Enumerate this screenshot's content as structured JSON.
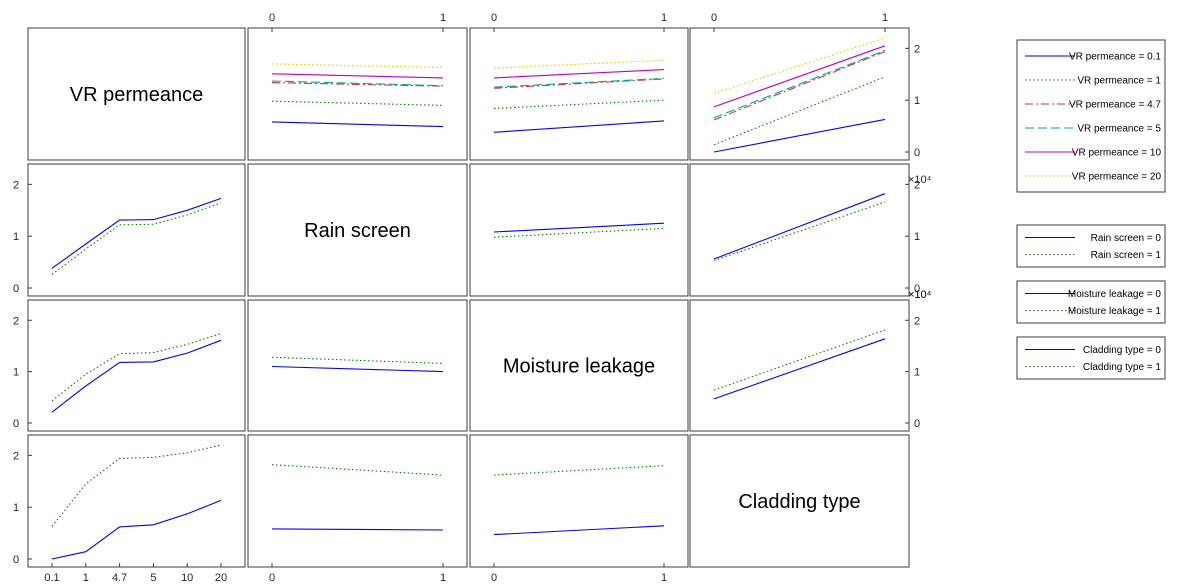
{
  "chart_data": {
    "type": "line",
    "variables": [
      "VR permeance",
      "Rain screen",
      "Moisture leakage",
      "Cladding type"
    ],
    "levels": [
      [
        "0.1",
        "1",
        "4.7",
        "5",
        "10",
        "20"
      ],
      [
        "0",
        "1"
      ],
      [
        "0",
        "1"
      ],
      [
        "0",
        "1"
      ]
    ],
    "series_styles": [
      {
        "color": "#0000ff",
        "dash": ""
      },
      {
        "color": "#008000",
        "dash": "1.5,2.5"
      },
      {
        "color": "#e03030",
        "dash": "8,3,2,3"
      },
      {
        "color": "#00a6a6",
        "dash": "9,4"
      },
      {
        "color": "#c000c0",
        "dash": ""
      },
      {
        "color": "#cccc00",
        "dash": "1.5,2.5"
      }
    ],
    "y_ticks": [
      "0",
      "1",
      "2"
    ],
    "exponent_label": "×10⁴",
    "ylim": [
      0,
      2.2
    ],
    "panels": [
      {
        "row": 0,
        "col": 1,
        "series": [
          [
            0.58,
            0.49
          ],
          [
            0.98,
            0.9
          ],
          [
            1.34,
            1.27
          ],
          [
            1.37,
            1.28
          ],
          [
            1.51,
            1.43
          ],
          [
            1.7,
            1.63
          ]
        ]
      },
      {
        "row": 0,
        "col": 2,
        "series": [
          [
            0.38,
            0.6
          ],
          [
            0.84,
            1.0
          ],
          [
            1.23,
            1.41
          ],
          [
            1.25,
            1.42
          ],
          [
            1.43,
            1.59
          ],
          [
            1.62,
            1.77
          ]
        ]
      },
      {
        "row": 0,
        "col": 3,
        "series": [
          [
            0.0,
            0.63
          ],
          [
            0.14,
            1.45
          ],
          [
            0.62,
            1.94
          ],
          [
            0.66,
            1.96
          ],
          [
            0.87,
            2.05
          ],
          [
            1.13,
            2.2
          ]
        ]
      },
      {
        "row": 1,
        "col": 0,
        "series": [
          [
            0.38,
            0.85,
            1.31,
            1.32,
            1.5,
            1.73
          ],
          [
            0.26,
            0.75,
            1.22,
            1.23,
            1.41,
            1.64
          ]
        ]
      },
      {
        "row": 1,
        "col": 2,
        "series": [
          [
            1.08,
            1.25
          ],
          [
            0.98,
            1.15
          ]
        ]
      },
      {
        "row": 1,
        "col": 3,
        "series": [
          [
            0.56,
            1.82
          ],
          [
            0.53,
            1.66
          ]
        ]
      },
      {
        "row": 2,
        "col": 0,
        "series": [
          [
            0.21,
            0.72,
            1.18,
            1.19,
            1.36,
            1.61
          ],
          [
            0.43,
            0.95,
            1.35,
            1.37,
            1.53,
            1.74
          ]
        ]
      },
      {
        "row": 2,
        "col": 1,
        "series": [
          [
            1.1,
            1.0
          ],
          [
            1.28,
            1.16
          ]
        ]
      },
      {
        "row": 2,
        "col": 3,
        "series": [
          [
            0.47,
            1.64
          ],
          [
            0.64,
            1.81
          ]
        ]
      },
      {
        "row": 3,
        "col": 0,
        "series": [
          [
            0.0,
            0.14,
            0.62,
            0.66,
            0.87,
            1.13
          ],
          [
            0.63,
            1.45,
            1.94,
            1.96,
            2.05,
            2.2
          ]
        ]
      },
      {
        "row": 3,
        "col": 1,
        "series": [
          [
            0.58,
            0.56
          ],
          [
            1.82,
            1.62
          ]
        ]
      },
      {
        "row": 3,
        "col": 2,
        "series": [
          [
            0.47,
            0.64
          ],
          [
            1.62,
            1.8
          ]
        ]
      }
    ],
    "legends": [
      {
        "entries": [
          "VR permeance = 0.1",
          "VR permeance = 1",
          "VR permeance = 4.7",
          "VR permeance = 5",
          "VR permeance = 10",
          "VR permeance = 20"
        ]
      },
      {
        "entries": [
          "Rain screen = 0",
          "Rain screen = 1"
        ]
      },
      {
        "entries": [
          "Moisture leakage = 0",
          "Moisture leakage = 1"
        ]
      },
      {
        "entries": [
          "Cladding type = 0",
          "Cladding type = 1"
        ]
      }
    ]
  }
}
